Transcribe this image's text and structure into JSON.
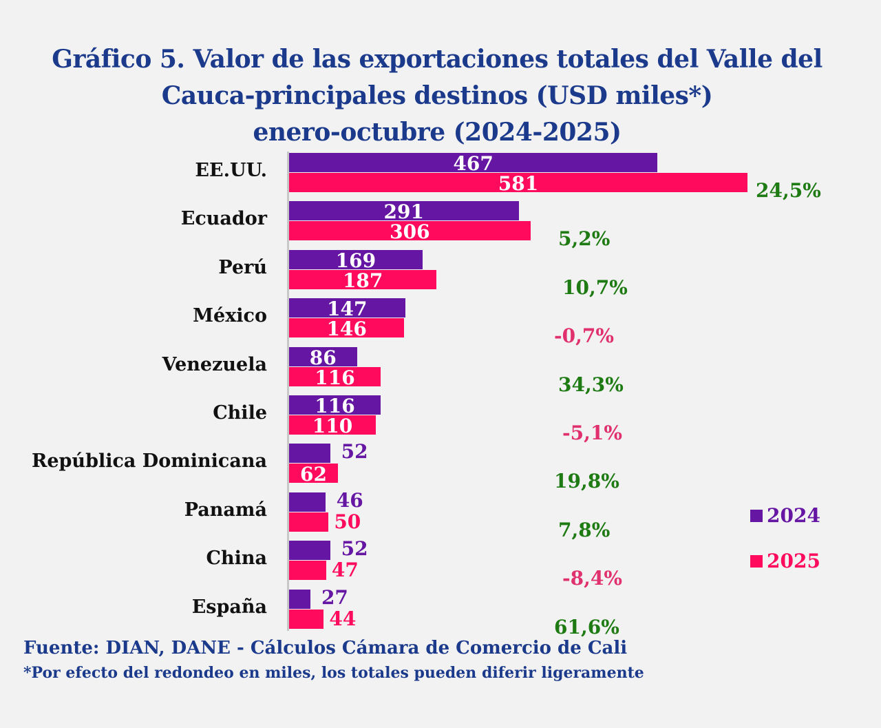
{
  "title_lines": [
    "Gráfico 5. Valor de las exportaciones totales del Valle del",
    "Cauca-principales destinos (USD miles*)",
    "enero-octubre (2024-2025)"
  ],
  "source": "Fuente: DIAN, DANE - Cálculos Cámara de Comercio de Cali",
  "note": "*Por efecto del redondeo en miles, los totales pueden diferir ligeramente",
  "colors": {
    "2024": "#6517a3",
    "2025": "#ff0a5c",
    "positive": "#1e7a12",
    "negative": "#e0306e",
    "title": "#1b3a8c"
  },
  "chart_data": {
    "type": "bar",
    "orientation": "horizontal",
    "title": "Gráfico 5. Valor de las exportaciones totales del Valle del Cauca-principales destinos (USD miles*) enero-octubre (2024-2025)",
    "categories": [
      "EE.UU.",
      "Ecuador",
      "Perú",
      "México",
      "Venezuela",
      "Chile",
      "República Dominicana",
      "Panamá",
      "China",
      "España"
    ],
    "series": [
      {
        "name": "2024",
        "values": [
          467,
          291,
          169,
          147,
          86,
          116,
          52,
          46,
          52,
          27
        ]
      },
      {
        "name": "2025",
        "values": [
          581,
          306,
          187,
          146,
          116,
          110,
          62,
          50,
          47,
          44
        ]
      }
    ],
    "change_labels": [
      "24,5%",
      "5,2%",
      "10,7%",
      "-0,7%",
      "34,3%",
      "-5,1%",
      "19,8%",
      "7,8%",
      "-8,4%",
      "61,6%"
    ],
    "legend": [
      "2024",
      "2025"
    ],
    "legend_position": "right",
    "grid": false
  }
}
